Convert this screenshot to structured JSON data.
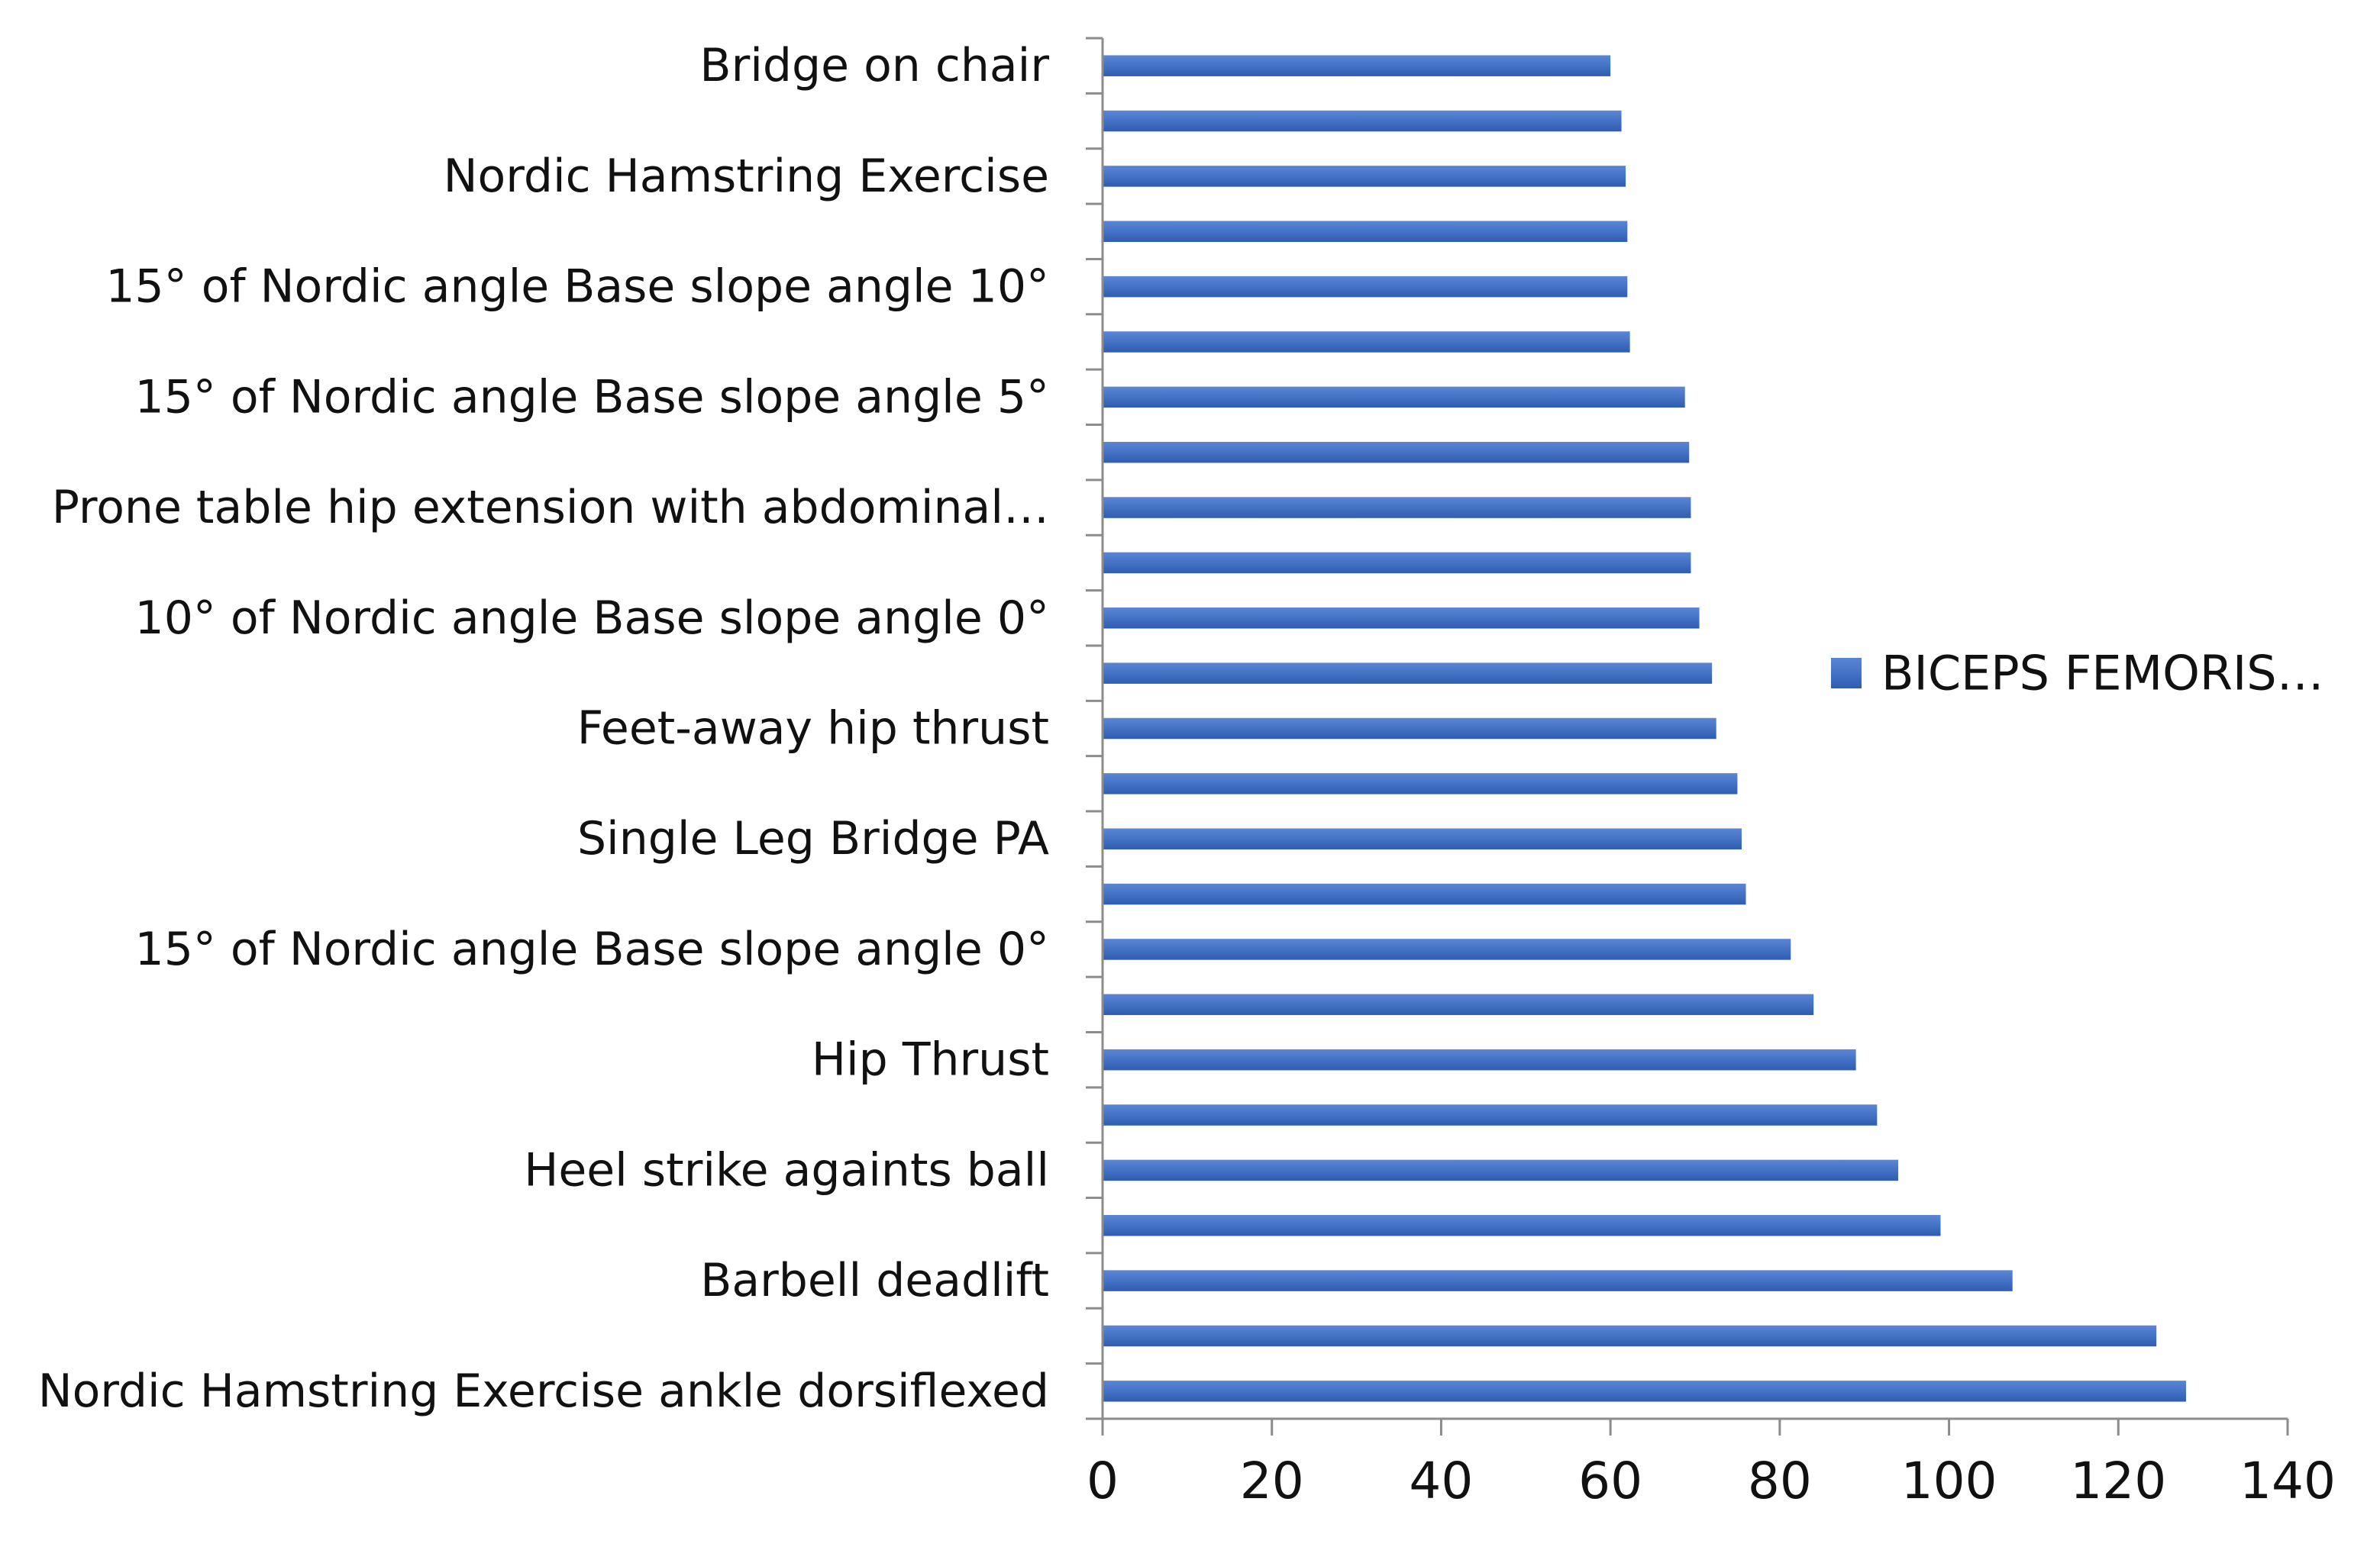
{
  "chart_data": {
    "type": "bar",
    "orientation": "horizontal",
    "title": "",
    "xlabel": "",
    "ylabel": "",
    "xlim": [
      0,
      140
    ],
    "x_ticks": [
      0,
      20,
      40,
      60,
      80,
      100,
      120,
      140
    ],
    "grid": false,
    "legend_position": "right",
    "bar_color": "#4472C4",
    "categories_bottom_to_top": [
      "Nordic Hamstring Exercise ankle dorsiflexed",
      "",
      "Barbell deadlift",
      "",
      "Heel strike againts ball",
      "",
      "Hip Thrust",
      "",
      "15° of Nordic angle Base slope angle 0°",
      "",
      "Single Leg Bridge PA",
      "",
      "Feet-away hip thrust",
      "",
      "10° of Nordic angle Base slope angle 0°",
      "",
      "Prone table hip extension with abdominal…",
      "",
      "15° of Nordic angle Base slope angle 5°",
      "",
      "15° of Nordic angle  Base slope angle 10°",
      "",
      "Nordic Hamstring Exercise",
      "",
      "Bridge on chair"
    ],
    "series": [
      {
        "name": "BICEPS FEMORIS…",
        "values_bottom_to_top": [
          128,
          124.5,
          107.5,
          99,
          94,
          91.5,
          89,
          84,
          81.3,
          76,
          75.5,
          75,
          72.5,
          72,
          70.5,
          69.5,
          69.5,
          69.3,
          68.8,
          62.3,
          62,
          62,
          61.8,
          61.3,
          60
        ]
      }
    ]
  }
}
